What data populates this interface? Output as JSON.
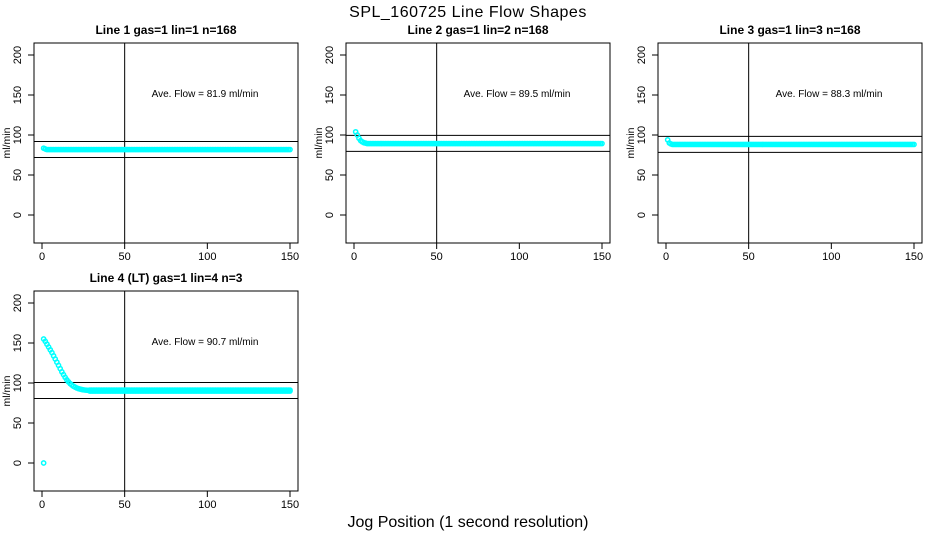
{
  "figure": {
    "title": "SPL_160725  Line Flow Shapes",
    "xlabel": "Jog Position (1 second resolution)",
    "background": "#FFFFFF",
    "axis_color": "#000000",
    "point_color": "#00FFFF"
  },
  "chart_data": [
    {
      "type": "scatter",
      "title": "Line 1 gas=1 lin=1 n=168",
      "annotation": "Ave. Flow =  81.9  ml/min",
      "ave_flow_ml_min": 81.9,
      "ylabel": "ml/min",
      "xlim": [
        0,
        155
      ],
      "ylim": [
        0,
        210
      ],
      "xticks": [
        0,
        50,
        100,
        150
      ],
      "yticks": [
        0,
        50,
        100,
        150,
        200
      ],
      "vline_x": 50,
      "hlines": [
        91.9,
        71.9
      ],
      "grid": false,
      "series": [
        {
          "name": "flow",
          "segments": [
            {
              "type": "pts",
              "pts": [
                [
                  1,
                  83.5
                ],
                [
                  2,
                  82.5
                ]
              ]
            },
            {
              "type": "flat",
              "x1": 3,
              "x2": 150,
              "y": 81.8,
              "step": 1
            }
          ]
        }
      ]
    },
    {
      "type": "scatter",
      "title": "Line 2 gas=1 lin=2 n=168",
      "annotation": "Ave. Flow =  89.5  ml/min",
      "ave_flow_ml_min": 89.5,
      "ylabel": "ml/min",
      "xlim": [
        0,
        155
      ],
      "ylim": [
        0,
        210
      ],
      "xticks": [
        0,
        50,
        100,
        150
      ],
      "yticks": [
        0,
        50,
        100,
        150,
        200
      ],
      "vline_x": 50,
      "hlines": [
        99.5,
        79.5
      ],
      "grid": false,
      "series": [
        {
          "name": "flow",
          "segments": [
            {
              "type": "pts",
              "pts": [
                [
                  1,
                  104
                ],
                [
                  2,
                  100
                ],
                [
                  3,
                  96
                ],
                [
                  4,
                  93
                ],
                [
                  5,
                  91.5
                ],
                [
                  6,
                  90.3
                ],
                [
                  7,
                  89.8
                ]
              ]
            },
            {
              "type": "flat",
              "x1": 8,
              "x2": 150,
              "y": 89.3,
              "step": 1
            }
          ]
        }
      ]
    },
    {
      "type": "scatter",
      "title": "Line 3 gas=1 lin=3 n=168",
      "annotation": "Ave. Flow =  88.3  ml/min",
      "ave_flow_ml_min": 88.3,
      "ylabel": "ml/min",
      "xlim": [
        0,
        155
      ],
      "ylim": [
        0,
        210
      ],
      "xticks": [
        0,
        50,
        100,
        150
      ],
      "yticks": [
        0,
        50,
        100,
        150,
        200
      ],
      "vline_x": 50,
      "hlines": [
        98.3,
        78.3
      ],
      "grid": false,
      "series": [
        {
          "name": "flow",
          "segments": [
            {
              "type": "pts",
              "pts": [
                [
                  1,
                  94
                ],
                [
                  2,
                  90
                ],
                [
                  3,
                  88.8
                ]
              ]
            },
            {
              "type": "flat",
              "x1": 4,
              "x2": 150,
              "y": 88.2,
              "step": 1
            }
          ]
        }
      ]
    },
    {
      "type": "scatter",
      "title": "Line 4 (LT) gas=1 lin=4 n=3",
      "annotation": "Ave. Flow =  90.7  ml/min",
      "ave_flow_ml_min": 90.7,
      "ylabel": "ml/min",
      "xlim": [
        0,
        155
      ],
      "ylim": [
        0,
        210
      ],
      "xticks": [
        0,
        50,
        100,
        150
      ],
      "yticks": [
        0,
        50,
        100,
        150,
        200
      ],
      "vline_x": 50,
      "hlines": [
        100.7,
        80.7
      ],
      "grid": false,
      "series": [
        {
          "name": "flow-outlier",
          "segments": [
            {
              "type": "pts",
              "pts": [
                [
                  1,
                  0
                ]
              ]
            }
          ]
        },
        {
          "name": "flow-decay",
          "segments": [
            {
              "type": "pts",
              "pts": [
                [
                  1,
                  155
                ],
                [
                  2,
                  152
                ],
                [
                  3,
                  148.5
                ],
                [
                  4,
                  145
                ],
                [
                  5,
                  141.5
                ],
                [
                  6,
                  138
                ],
                [
                  7,
                  134
                ],
                [
                  8,
                  130
                ],
                [
                  9,
                  126
                ],
                [
                  10,
                  122
                ],
                [
                  11,
                  118
                ],
                [
                  12,
                  114
                ],
                [
                  13,
                  110.5
                ],
                [
                  14,
                  107
                ],
                [
                  15,
                  104
                ],
                [
                  16,
                  101.5
                ],
                [
                  17,
                  99.3
                ],
                [
                  18,
                  97.5
                ],
                [
                  19,
                  96
                ],
                [
                  20,
                  94.8
                ],
                [
                  21,
                  93.8
                ],
                [
                  22,
                  93
                ],
                [
                  23,
                  92.4
                ],
                [
                  24,
                  91.9
                ],
                [
                  25,
                  91.5
                ],
                [
                  26,
                  91.2
                ],
                [
                  27,
                  91
                ],
                [
                  28,
                  90.8
                ]
              ]
            },
            {
              "type": "flat",
              "x1": 29,
              "x2": 150,
              "y": 91.2,
              "step": 1
            },
            {
              "type": "flat",
              "x1": 29,
              "x2": 150,
              "y": 89.9,
              "step": 1
            }
          ]
        }
      ]
    }
  ]
}
